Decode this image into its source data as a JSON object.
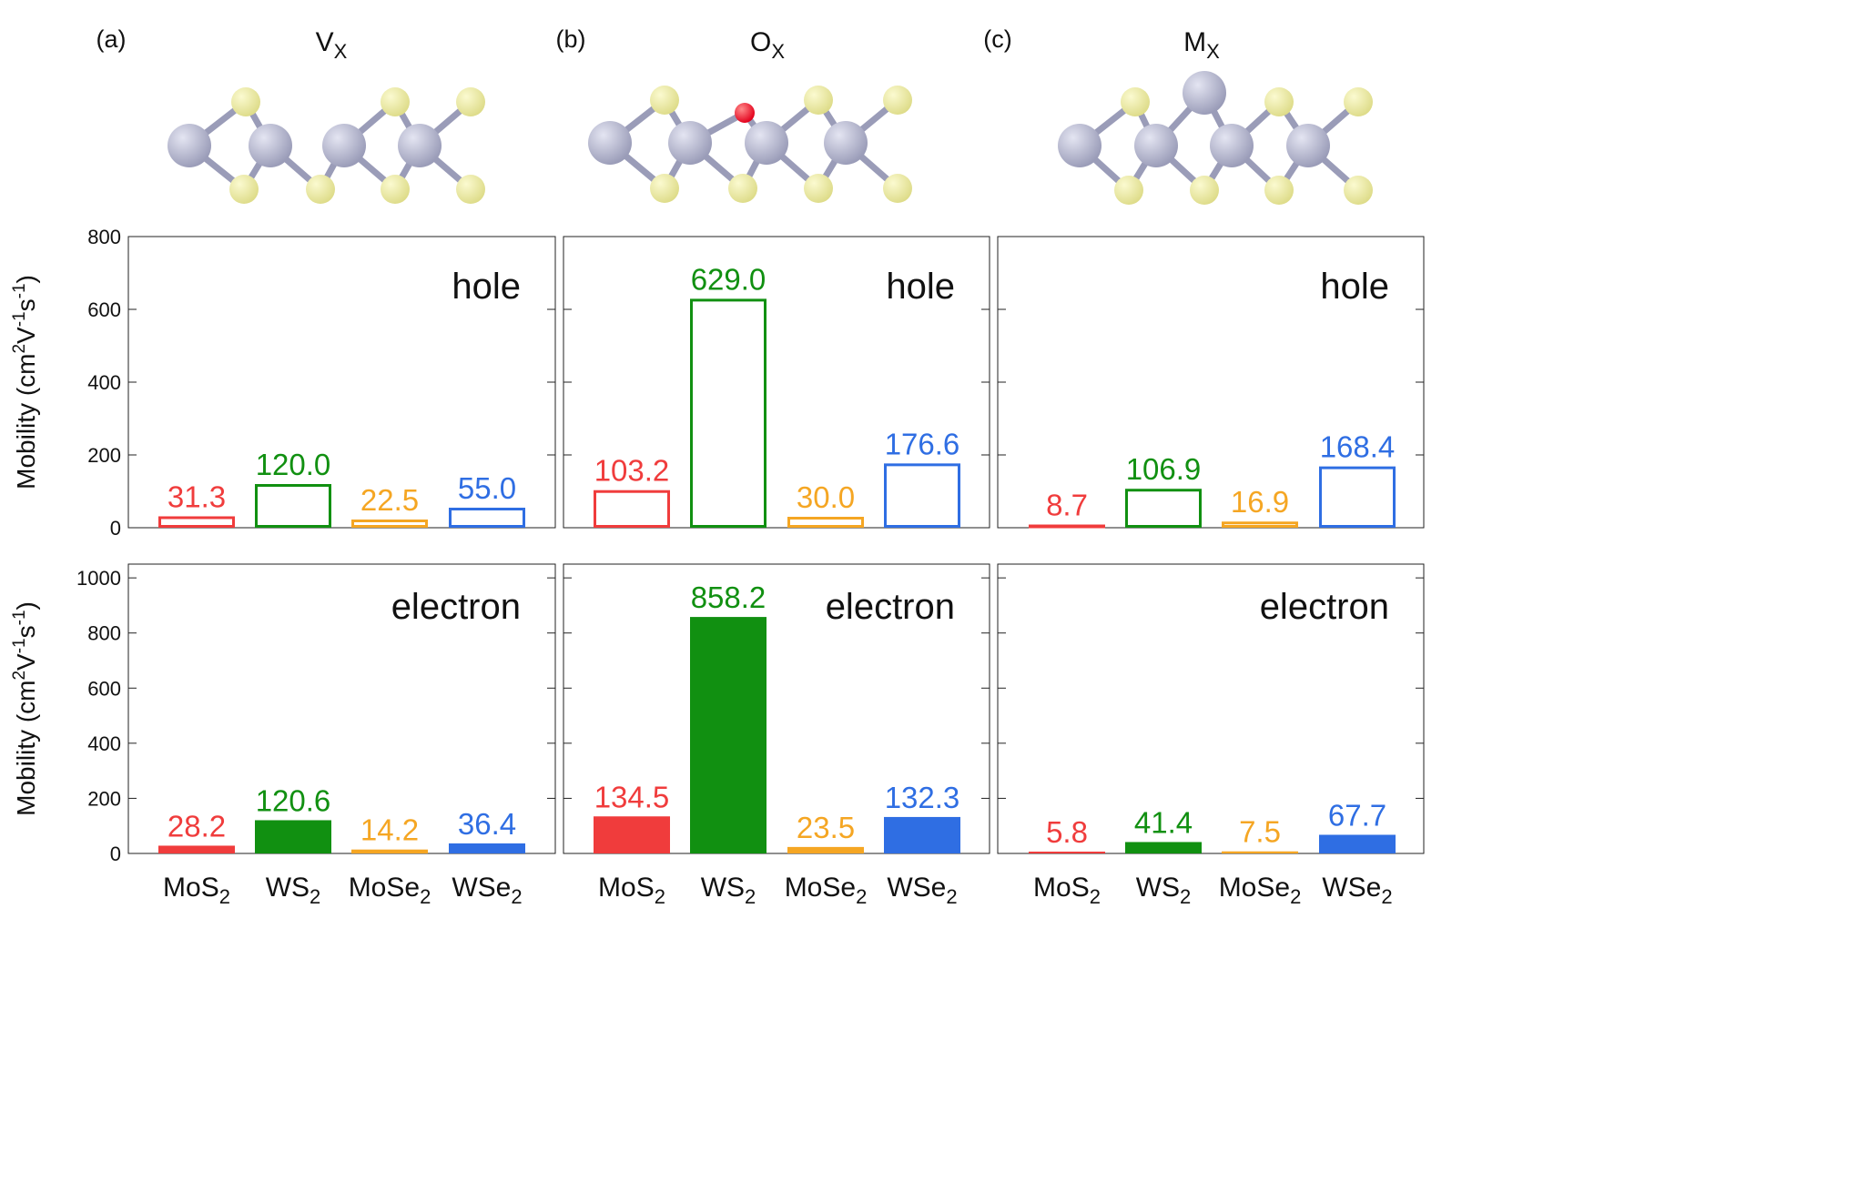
{
  "panels": [
    {
      "letter": "(a)",
      "defect_main": "V",
      "defect_sub": "X"
    },
    {
      "letter": "(b)",
      "defect_main": "O",
      "defect_sub": "X"
    },
    {
      "letter": "(c)",
      "defect_main": "M",
      "defect_sub": "X"
    }
  ],
  "y_axis_label_parts": [
    "Mobility (cm",
    "2",
    "V",
    "-1",
    "s",
    "-1",
    ")"
  ],
  "colors": {
    "MoS2": "#f03c3c",
    "WS2": "#119011",
    "MoSe2": "#f5a623",
    "WSe2": "#2f6ee3",
    "metal_atom": "#9a9cb8",
    "chalcogen_atom": "#dedc8a",
    "oxygen_atom": "#e3001b",
    "bond": "#9a9cb8"
  },
  "x_tick_labels": [
    {
      "main": "MoS",
      "sub": "2"
    },
    {
      "main": "WS",
      "sub": "2"
    },
    {
      "main": "MoSe",
      "sub": "2"
    },
    {
      "main": "WSe",
      "sub": "2"
    }
  ],
  "chart_data": [
    {
      "type": "bar",
      "panel": "(a)",
      "carrier": "hole",
      "categories": [
        "MoS2",
        "WS2",
        "MoSe2",
        "WSe2"
      ],
      "values": [
        31.3,
        120.0,
        22.5,
        55.0
      ],
      "labels": [
        "31.3",
        "120.0",
        "22.5",
        "55.0"
      ],
      "ylim": [
        0,
        800
      ],
      "yticks": [
        0,
        200,
        400,
        600,
        800
      ],
      "style": "outline"
    },
    {
      "type": "bar",
      "panel": "(b)",
      "carrier": "hole",
      "categories": [
        "MoS2",
        "WS2",
        "MoSe2",
        "WSe2"
      ],
      "values": [
        103.2,
        629.0,
        30.0,
        176.6
      ],
      "labels": [
        "103.2",
        "629.0",
        "30.0",
        "176.6"
      ],
      "ylim": [
        0,
        800
      ],
      "yticks": [
        0,
        200,
        400,
        600,
        800
      ],
      "style": "outline"
    },
    {
      "type": "bar",
      "panel": "(c)",
      "carrier": "hole",
      "categories": [
        "MoS2",
        "WS2",
        "MoSe2",
        "WSe2"
      ],
      "values": [
        8.7,
        106.9,
        16.9,
        168.4
      ],
      "labels": [
        "8.7",
        "106.9",
        "16.9",
        "168.4"
      ],
      "ylim": [
        0,
        800
      ],
      "yticks": [
        0,
        200,
        400,
        600,
        800
      ],
      "style": "outline"
    },
    {
      "type": "bar",
      "panel": "(a)",
      "carrier": "electron",
      "categories": [
        "MoS2",
        "WS2",
        "MoSe2",
        "WSe2"
      ],
      "values": [
        28.2,
        120.6,
        14.2,
        36.4
      ],
      "labels": [
        "28.2",
        "120.6",
        "14.2",
        "36.4"
      ],
      "ylim": [
        0,
        1050
      ],
      "yticks": [
        0,
        200,
        400,
        600,
        800,
        1000
      ],
      "style": "filled"
    },
    {
      "type": "bar",
      "panel": "(b)",
      "carrier": "electron",
      "categories": [
        "MoS2",
        "WS2",
        "MoSe2",
        "WSe2"
      ],
      "values": [
        134.5,
        858.2,
        23.5,
        132.3
      ],
      "labels": [
        "134.5",
        "858.2",
        "23.5",
        "132.3"
      ],
      "ylim": [
        0,
        1050
      ],
      "yticks": [
        0,
        200,
        400,
        600,
        800,
        1000
      ],
      "style": "filled"
    },
    {
      "type": "bar",
      "panel": "(c)",
      "carrier": "electron",
      "categories": [
        "MoS2",
        "WS2",
        "MoSe2",
        "WSe2"
      ],
      "values": [
        5.8,
        41.4,
        7.5,
        67.7
      ],
      "labels": [
        "5.8",
        "41.4",
        "7.5",
        "67.7"
      ],
      "ylim": [
        0,
        1050
      ],
      "yticks": [
        0,
        200,
        400,
        600,
        800,
        1000
      ],
      "style": "filled"
    }
  ]
}
